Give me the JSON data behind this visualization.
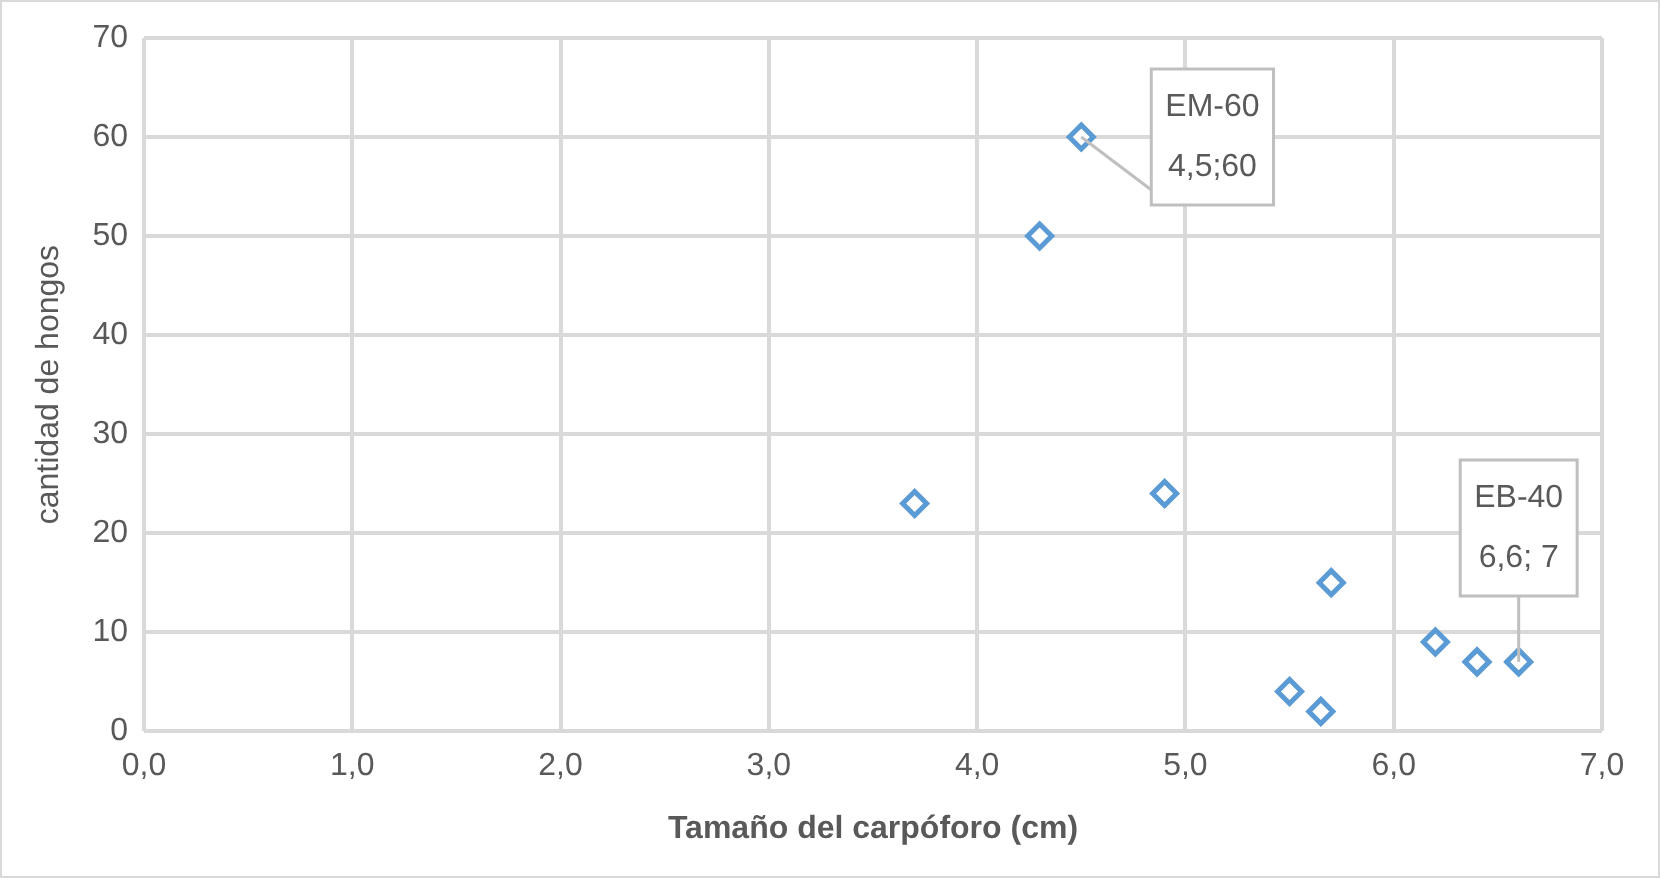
{
  "chart_data": {
    "type": "scatter",
    "xlabel": "Tamaño del carpóforo (cm)",
    "ylabel": "cantidad de hongos",
    "x": [
      3.7,
      4.3,
      4.5,
      4.9,
      5.7,
      5.5,
      5.65,
      6.2,
      6.4,
      6.6
    ],
    "series": [
      {
        "color": "#5b9bd5",
        "values": [
          23,
          50,
          60,
          24,
          15,
          4,
          2,
          9,
          7,
          7
        ]
      }
    ],
    "xlim": [
      0,
      7
    ],
    "xticks": [
      {
        "value": 0,
        "label": "0,0"
      },
      {
        "value": 1,
        "label": "1,0"
      },
      {
        "value": 2,
        "label": "2,0"
      },
      {
        "value": 3,
        "label": "3,0"
      },
      {
        "value": 4,
        "label": "4,0"
      },
      {
        "value": 5,
        "label": "5,0"
      },
      {
        "value": 6,
        "label": "6,0"
      },
      {
        "value": 7,
        "label": "7,0"
      }
    ],
    "ylim": [
      0,
      70
    ],
    "yticks": [
      0,
      10,
      20,
      30,
      40,
      50,
      60,
      70
    ],
    "annotations": [
      {
        "text": "EM-60\n4,5;60",
        "x": 4.5,
        "y": 60
      },
      {
        "text": "EB-40\n6,6; 7",
        "x": 6.6,
        "y": 7
      }
    ],
    "grid": true,
    "legend": false,
    "marker": "diamond"
  }
}
